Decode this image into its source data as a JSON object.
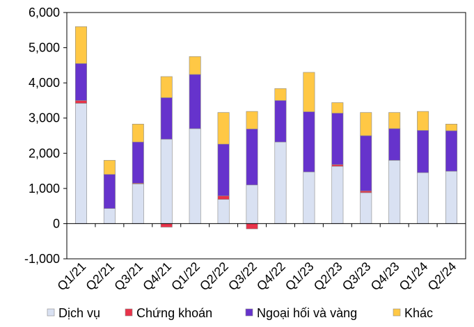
{
  "chart_data": {
    "type": "bar",
    "stacked": true,
    "categories": [
      "Q1/21",
      "Q2/21",
      "Q3/21",
      "Q4/21",
      "Q1/22",
      "Q2/22",
      "Q3/22",
      "Q4/22",
      "Q1/23",
      "Q2/23",
      "Q3/23",
      "Q4/23",
      "Q1/24",
      "Q2/24"
    ],
    "ylim": [
      -1000,
      6000
    ],
    "yticks": [
      -1000,
      0,
      1000,
      2000,
      3000,
      4000,
      5000,
      6000
    ],
    "ytick_labels": [
      "-1,000",
      "0",
      "1,000",
      "2,000",
      "3,000",
      "4,000",
      "5,000",
      "6,000"
    ],
    "grid": false,
    "legend_position": "bottom",
    "series": [
      {
        "name": "Dịch vụ",
        "color": "#D9E1F2",
        "values": [
          3420,
          430,
          1130,
          2400,
          2700,
          690,
          1100,
          2320,
          1470,
          1630,
          880,
          1800,
          1450,
          1490
        ]
      },
      {
        "name": "Chứng khoán",
        "color": "#E8334A",
        "values": [
          80,
          0,
          20,
          -100,
          0,
          100,
          -150,
          0,
          0,
          50,
          50,
          0,
          0,
          0
        ]
      },
      {
        "name": "Ngoại hối và vàng",
        "color": "#6633CC",
        "values": [
          1050,
          970,
          1170,
          1180,
          1540,
          1470,
          1590,
          1180,
          1710,
          1460,
          1570,
          900,
          1200,
          1150
        ]
      },
      {
        "name": "Khác",
        "color": "#FFC845",
        "values": [
          1050,
          400,
          510,
          600,
          510,
          900,
          500,
          340,
          1120,
          300,
          660,
          460,
          540,
          190
        ]
      }
    ]
  }
}
